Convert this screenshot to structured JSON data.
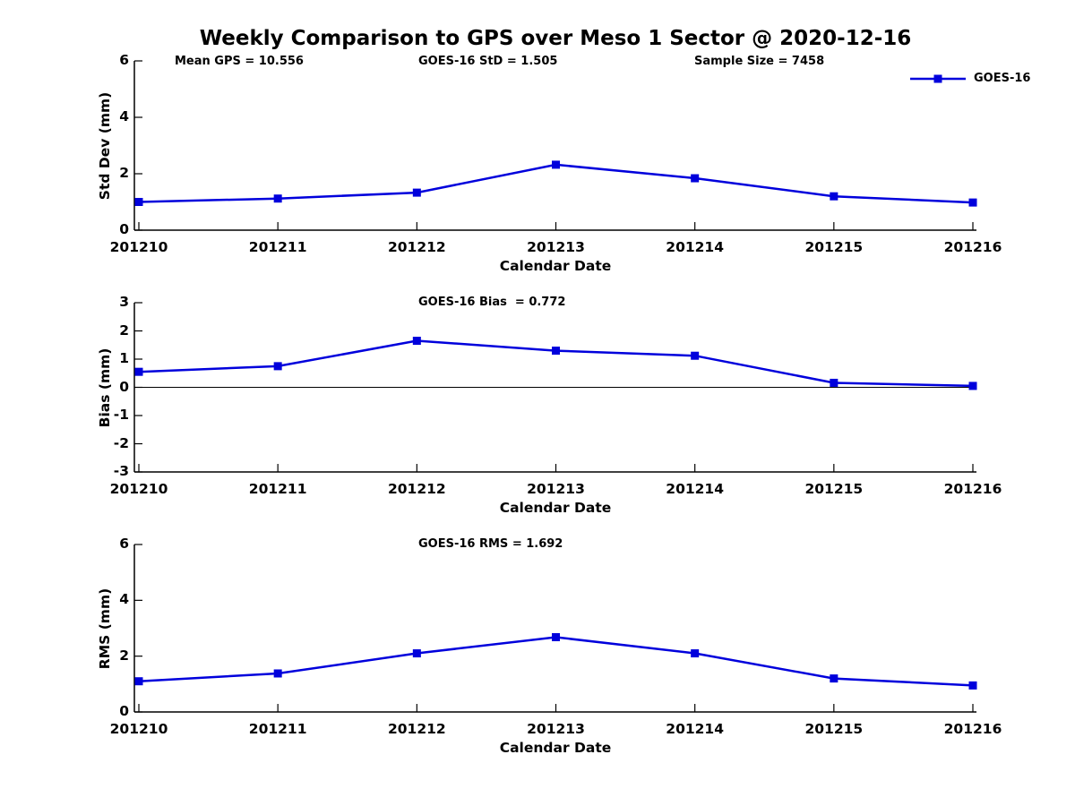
{
  "page": {
    "title": "Weekly Comparison to GPS over Meso 1 Sector @ 2020-12-16"
  },
  "legend": {
    "label": "GOES-16",
    "color": "#0000DC",
    "marker": "square",
    "position": "top-right"
  },
  "chart_data": [
    {
      "type": "line",
      "title": "",
      "xlabel": "Calendar Date",
      "ylabel": "Std Dev (mm)",
      "categories": [
        "201210",
        "201211",
        "201212",
        "201213",
        "201214",
        "201215",
        "201216"
      ],
      "series": [
        {
          "name": "GOES-16",
          "values": [
            1.0,
            1.12,
            1.33,
            2.32,
            1.84,
            1.2,
            0.98
          ]
        }
      ],
      "ylim": [
        0,
        6
      ],
      "yticks": [
        0,
        2,
        4,
        6
      ],
      "zero_line": false,
      "grid": false,
      "annotations": [
        "Mean GPS = 10.556",
        "GOES-16 StD = 1.505",
        "Sample Size = 7458"
      ]
    },
    {
      "type": "line",
      "title": "",
      "xlabel": "Calendar Date",
      "ylabel": "Bias (mm)",
      "categories": [
        "201210",
        "201211",
        "201212",
        "201213",
        "201214",
        "201215",
        "201216"
      ],
      "series": [
        {
          "name": "GOES-16",
          "values": [
            0.55,
            0.75,
            1.65,
            1.3,
            1.12,
            0.16,
            0.05
          ]
        }
      ],
      "ylim": [
        -3,
        3
      ],
      "yticks": [
        -3,
        -2,
        -1,
        0,
        1,
        2,
        3
      ],
      "zero_line": true,
      "grid": false,
      "annotations": [
        "GOES-16 Bias  = 0.772"
      ]
    },
    {
      "type": "line",
      "title": "",
      "xlabel": "Calendar Date",
      "ylabel": "RMS (mm)",
      "categories": [
        "201210",
        "201211",
        "201212",
        "201213",
        "201214",
        "201215",
        "201216"
      ],
      "series": [
        {
          "name": "GOES-16",
          "values": [
            1.1,
            1.38,
            2.1,
            2.68,
            2.1,
            1.2,
            0.95
          ]
        }
      ],
      "ylim": [
        0,
        6
      ],
      "yticks": [
        0,
        2,
        4,
        6
      ],
      "zero_line": false,
      "grid": false,
      "annotations": [
        "GOES-16 RMS = 1.692"
      ]
    }
  ]
}
